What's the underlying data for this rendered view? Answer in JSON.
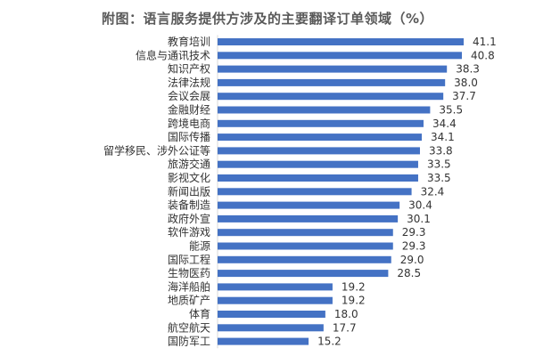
{
  "chart_data": {
    "type": "bar",
    "orientation": "horizontal",
    "title": "附图：语言服务提供方涉及的主要翻译订单领域（%）",
    "categories": [
      "教育培训",
      "信息与通讯技术",
      "知识产权",
      "法律法规",
      "会议会展",
      "金融财经",
      "跨境电商",
      "国际传播",
      "留学移民、涉外公证等",
      "旅游交通",
      "影视文化",
      "新闻出版",
      "装备制造",
      "政府外宣",
      "软件游戏",
      "能源",
      "国际工程",
      "生物医药",
      "海洋船舶",
      "地质矿产",
      "体育",
      "航空航天",
      "国防军工"
    ],
    "values": [
      41.1,
      40.8,
      38.3,
      38.0,
      37.7,
      35.5,
      34.4,
      34.1,
      33.8,
      33.5,
      33.5,
      32.4,
      30.4,
      30.1,
      29.3,
      29.3,
      29.0,
      28.5,
      19.2,
      19.2,
      18.0,
      17.7,
      15.2
    ],
    "value_labels": [
      "41.1",
      "40.8",
      "38.3",
      "38.0",
      "37.7",
      "35.5",
      "34.4",
      "34.1",
      "33.8",
      "33.5",
      "33.5",
      "32.4",
      "30.4",
      "30.1",
      "29.3",
      "29.3",
      "29.0",
      "28.5",
      "19.2",
      "19.2",
      "18.0",
      "17.7",
      "15.2"
    ],
    "xlim": [
      0,
      41.1
    ],
    "grid": false,
    "legend": "none",
    "bar_color": "#4472C4"
  }
}
